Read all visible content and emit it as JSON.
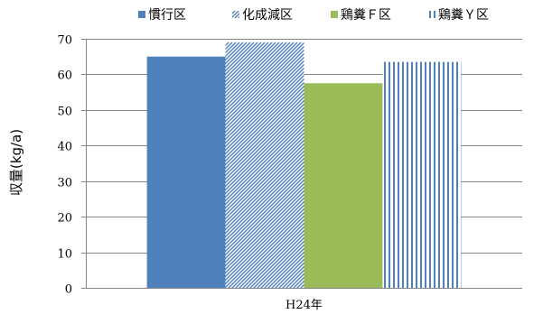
{
  "chart_data": {
    "type": "bar",
    "title": "",
    "xlabel": "",
    "ylabel": "収量(kg/a)",
    "categories": [
      "H24年"
    ],
    "ylim": [
      0,
      70
    ],
    "yticks": [
      0,
      10,
      20,
      30,
      40,
      50,
      60,
      70
    ],
    "grid": true,
    "legend_position": "top",
    "series": [
      {
        "name": "慣行区",
        "values": [
          65
        ],
        "color": "#4f81bd",
        "pattern": "solid"
      },
      {
        "name": "化成減区",
        "values": [
          69
        ],
        "color": "#4f81bd",
        "pattern": "diagonal-hatch"
      },
      {
        "name": "鶏糞Ｆ区",
        "values": [
          57.5
        ],
        "color": "#9bbb59",
        "pattern": "solid"
      },
      {
        "name": "鶏糞Ｙ区",
        "values": [
          63.5
        ],
        "color": "#4f81bd",
        "pattern": "vertical-lines"
      }
    ]
  }
}
